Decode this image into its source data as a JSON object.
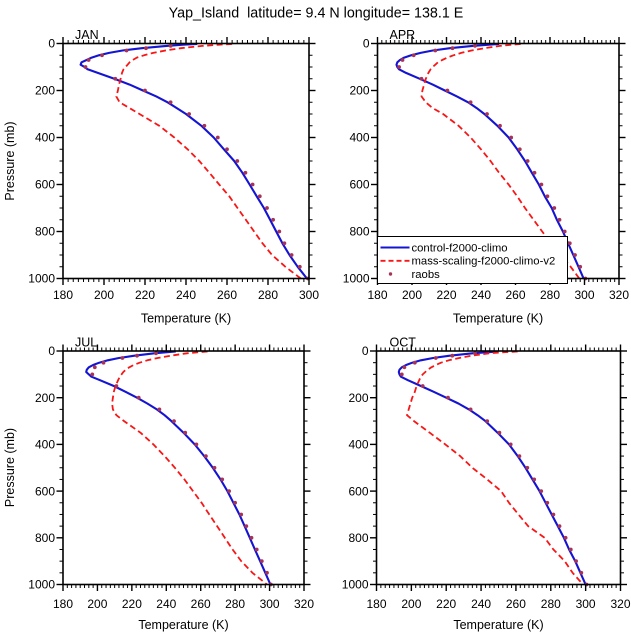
{
  "chart_data": {
    "type": "line",
    "title": "Yap_Island  latitude= 9.4 N longitude= 138.1 E",
    "xlabel": "Temperature (K)",
    "ylabel": "Pressure (mb)",
    "grid": false,
    "y_axis": {
      "min": 0,
      "max": 1000,
      "inverted": true,
      "major_ticks": [
        0,
        200,
        400,
        600,
        800,
        1000
      ],
      "minor_step": 50
    },
    "x_minor_step": 2.5,
    "colors": {
      "control": "#1414d2",
      "mass_scaling": "#f81616",
      "raobs": "#a73457",
      "axis": "#000000"
    },
    "legend": {
      "position": "inside-lower-left-of-APR-panel",
      "entries": [
        {
          "id": "control",
          "label": "control-f2000-climo",
          "style": "solid-line",
          "color": "#1414d2"
        },
        {
          "id": "mass_scaling",
          "label": "mass-scaling-f2000-climo-v2",
          "style": "dashed-line",
          "color": "#f81616"
        },
        {
          "id": "raobs",
          "label": "raobs",
          "style": "dot",
          "color": "#a73457"
        }
      ]
    },
    "panels": [
      {
        "id": "jan",
        "label": "JAN",
        "xlim": [
          180,
          300
        ],
        "xticks": [
          180,
          200,
          220,
          240,
          260,
          280,
          300
        ],
        "series": {
          "control": {
            "pressure": [
              2,
              5,
              10,
              20,
              30,
              40,
              50,
              60,
              70,
              80,
              90,
              100,
              110,
              125,
              150,
              175,
              200,
              225,
              250,
              275,
              300,
              350,
              400,
              450,
              500,
              550,
              600,
              650,
              700,
              750,
              800,
              850,
              900,
              950,
              1000
            ],
            "temperature": [
              245.5,
              238.5,
              230.5,
              218.5,
              209,
              202.5,
              197.5,
              194,
              191.5,
              189,
              188.6,
              190.5,
              192,
              197,
              205,
              212.5,
              219,
              225.5,
              231,
              235.5,
              240,
              247.5,
              253.5,
              258.5,
              263.5,
              267.5,
              271,
              274.5,
              278,
              281,
              284,
              287,
              290.5,
              294.5,
              299
            ]
          },
          "mass_scaling": {
            "pressure": [
              2,
              5,
              10,
              20,
              30,
              40,
              50,
              60,
              70,
              80,
              90,
              100,
              110,
              125,
              150,
              175,
              200,
              225,
              250,
              275,
              300,
              350,
              400,
              450,
              500,
              550,
              600,
              650,
              700,
              750,
              800,
              850,
              900,
              950,
              1000
            ],
            "temperature": [
              262.5,
              256,
              248,
              237.5,
              230,
              224,
              219.5,
              216,
              214,
              212.5,
              211.5,
              210.5,
              209.5,
              208.8,
              208.1,
              207.3,
              206.8,
              206,
              207.6,
              212.5,
              217.3,
              227,
              234.3,
              240.8,
              246.5,
              251.4,
              256.2,
              261.1,
              265.1,
              269.2,
              273.2,
              277.3,
              282,
              288.5,
              296
            ]
          },
          "raobs": {
            "pressure": [
              1000,
              950,
              900,
              850,
              800,
              750,
              700,
              650,
              600,
              550,
              500,
              450,
              400,
              350,
              300,
              250,
              200,
              150,
              100,
              70,
              50,
              30,
              20,
              10
            ],
            "temperature": [
              299.5,
              295.5,
              291.5,
              288,
              285.5,
              282.5,
              279.5,
              276,
              272.5,
              269,
              265,
              260,
              255.5,
              249,
              241.5,
              232.5,
              220,
              205.5,
              191,
              192.5,
              199,
              211,
              220.5,
              232.5
            ]
          }
        }
      },
      {
        "id": "apr",
        "label": "APR",
        "xlim": [
          180,
          320
        ],
        "xticks": [
          180,
          200,
          220,
          240,
          260,
          280,
          300,
          320
        ],
        "series": {
          "control": {
            "pressure": [
              2,
              5,
              10,
              20,
              30,
              40,
              50,
              60,
              70,
              80,
              90,
              100,
              110,
              125,
              150,
              175,
              200,
              225,
              250,
              275,
              300,
              350,
              400,
              450,
              500,
              550,
              600,
              650,
              700,
              750,
              800,
              850,
              900,
              950,
              1000
            ],
            "temperature": [
              250.5,
              244.5,
              235,
              222,
              212,
              205,
              199.5,
              195.5,
              193,
              191.5,
              191,
              191.5,
              192.5,
              196.5,
              204.5,
              212,
              219,
              226,
              232.5,
              237.5,
              242,
              249.5,
              256,
              261,
              265.5,
              269.5,
              273.5,
              277,
              281,
              284,
              287.5,
              290.5,
              293.5,
              296.5,
              299.5
            ]
          },
          "mass_scaling": {
            "pressure": [
              2,
              5,
              10,
              20,
              30,
              40,
              50,
              60,
              70,
              80,
              90,
              100,
              110,
              125,
              150,
              175,
              200,
              225,
              250,
              275,
              300,
              350,
              400,
              450,
              500,
              550,
              600,
              650,
              700,
              750,
              800,
              850,
              900,
              950,
              1000
            ],
            "temperature": [
              263,
              258,
              251,
              242,
              234.5,
              228.5,
              224,
              220.5,
              217.5,
              215,
              213.5,
              212,
              210.8,
              209.5,
              208,
              207,
              206,
              205.5,
              208,
              212,
              218,
              227,
              234,
              240,
              245.5,
              250.5,
              256,
              261,
              265.5,
              270.5,
              275.5,
              280.5,
              286,
              292,
              297
            ]
          },
          "raobs": {
            "pressure": [
              1000,
              950,
              900,
              850,
              800,
              750,
              700,
              650,
              600,
              550,
              500,
              450,
              400,
              350,
              300,
              250,
              200,
              150,
              100,
              70,
              50,
              30,
              20,
              10
            ],
            "temperature": [
              300.5,
              297.5,
              294.5,
              291.5,
              288.5,
              285.5,
              282.5,
              278.5,
              275,
              271,
              267,
              262.5,
              257.5,
              251,
              243.5,
              234,
              220.5,
              205.5,
              192.5,
              194.5,
              201,
              213.5,
              223.5,
              236.5
            ]
          }
        }
      },
      {
        "id": "jul",
        "label": "JUL",
        "xlim": [
          180,
          320
        ],
        "xticks": [
          180,
          200,
          220,
          240,
          260,
          280,
          300,
          320
        ],
        "series": {
          "control": {
            "pressure": [
              2,
              5,
              10,
              20,
              30,
              40,
              50,
              60,
              70,
              80,
              90,
              100,
              110,
              125,
              150,
              175,
              200,
              225,
              250,
              275,
              300,
              350,
              400,
              450,
              500,
              550,
              600,
              650,
              700,
              750,
              800,
              850,
              900,
              950,
              1000
            ],
            "temperature": [
              245.5,
              240.5,
              233,
              221.5,
              212.5,
              206,
              201,
              197.5,
              195,
              193.8,
              193.5,
              195,
              196.5,
              201.5,
              209.5,
              216.5,
              223,
              229,
              234.5,
              239,
              243,
              250,
              256.5,
              262,
              267,
              271.5,
              275.5,
              279,
              282.5,
              285.5,
              288.5,
              291.5,
              294.5,
              297.5,
              300.5
            ]
          },
          "mass_scaling": {
            "pressure": [
              2,
              5,
              10,
              20,
              30,
              40,
              50,
              60,
              70,
              80,
              90,
              100,
              110,
              125,
              150,
              175,
              200,
              225,
              250,
              275,
              300,
              350,
              400,
              450,
              500,
              550,
              600,
              650,
              700,
              750,
              800,
              850,
              900,
              950,
              1000
            ],
            "temperature": [
              264,
              259,
              252,
              242.5,
              235,
              229,
              224.5,
              221,
              218.5,
              216.5,
              215,
              214,
              213,
              212,
              210.5,
              209.5,
              209,
              208.5,
              209,
              211,
              215.5,
              225,
              232.5,
              239,
              245,
              250.5,
              255.5,
              260.5,
              265,
              269.5,
              274,
              278.5,
              283.5,
              290,
              298.5
            ]
          },
          "raobs": {
            "pressure": [
              1000,
              950,
              900,
              850,
              800,
              750,
              700,
              650,
              600,
              550,
              500,
              450,
              400,
              350,
              300,
              250,
              200,
              150,
              100,
              70,
              50,
              30,
              20,
              10
            ],
            "temperature": [
              300.8,
              298.5,
              295.5,
              292.5,
              289.5,
              286.5,
              283.5,
              280,
              276.5,
              272.5,
              268,
              263,
              257.5,
              251,
              244.5,
              236,
              224,
              211,
              197,
              198.5,
              203.5,
              214.5,
              223,
              234
            ]
          }
        }
      },
      {
        "id": "oct",
        "label": "OCT",
        "xlim": [
          180,
          320
        ],
        "xticks": [
          180,
          200,
          220,
          240,
          260,
          280,
          300,
          320
        ],
        "series": {
          "control": {
            "pressure": [
              2,
              5,
              10,
              20,
              30,
              40,
              50,
              60,
              70,
              80,
              90,
              100,
              110,
              125,
              150,
              175,
              200,
              225,
              250,
              275,
              300,
              350,
              400,
              450,
              500,
              550,
              600,
              650,
              700,
              750,
              800,
              850,
              900,
              950,
              1000
            ],
            "temperature": [
              250,
              244,
              235,
              222,
              212.5,
              205.5,
              200.5,
              197,
              194.5,
              193.2,
              192.8,
              193.2,
              194,
              198,
              205.5,
              213,
              220,
              227,
              233,
              238,
              242.5,
              249.5,
              256,
              261,
              265.5,
              269.5,
              273.5,
              277,
              280.5,
              284,
              287.5,
              290.5,
              294,
              297,
              300
            ]
          },
          "mass_scaling": {
            "pressure": [
              2,
              5,
              10,
              20,
              30,
              40,
              50,
              60,
              70,
              80,
              90,
              100,
              110,
              125,
              150,
              175,
              200,
              225,
              250,
              275,
              300,
              350,
              400,
              450,
              500,
              550,
              600,
              650,
              700,
              750,
              800,
              850,
              900,
              950,
              1000
            ],
            "temperature": [
              261,
              253,
              244.5,
              234.5,
              227.5,
              221.5,
              217,
              214,
              211.5,
              209.5,
              208,
              206.5,
              205.5,
              204.5,
              203,
              202,
              200.5,
              199.5,
              198.5,
              197.5,
              201.5,
              210.5,
              219.5,
              228,
              235,
              243.5,
              251.5,
              256,
              261.5,
              267,
              276.5,
              281.5,
              288,
              292.5,
              298.5
            ]
          },
          "raobs": {
            "pressure": [
              1000,
              950,
              900,
              850,
              800,
              750,
              700,
              650,
              600,
              550,
              500,
              450,
              400,
              350,
              300,
              250,
              200,
              150,
              100,
              70,
              50,
              30,
              20,
              10
            ],
            "temperature": [
              300.5,
              297.5,
              294.5,
              291.5,
              288.5,
              285,
              281.5,
              278,
              274.5,
              270.5,
              266.5,
              262,
              257,
              250.5,
              243.5,
              234,
              221,
              206.5,
              194.5,
              196,
              202,
              214,
              223.5,
              236.5
            ]
          }
        }
      }
    ]
  }
}
